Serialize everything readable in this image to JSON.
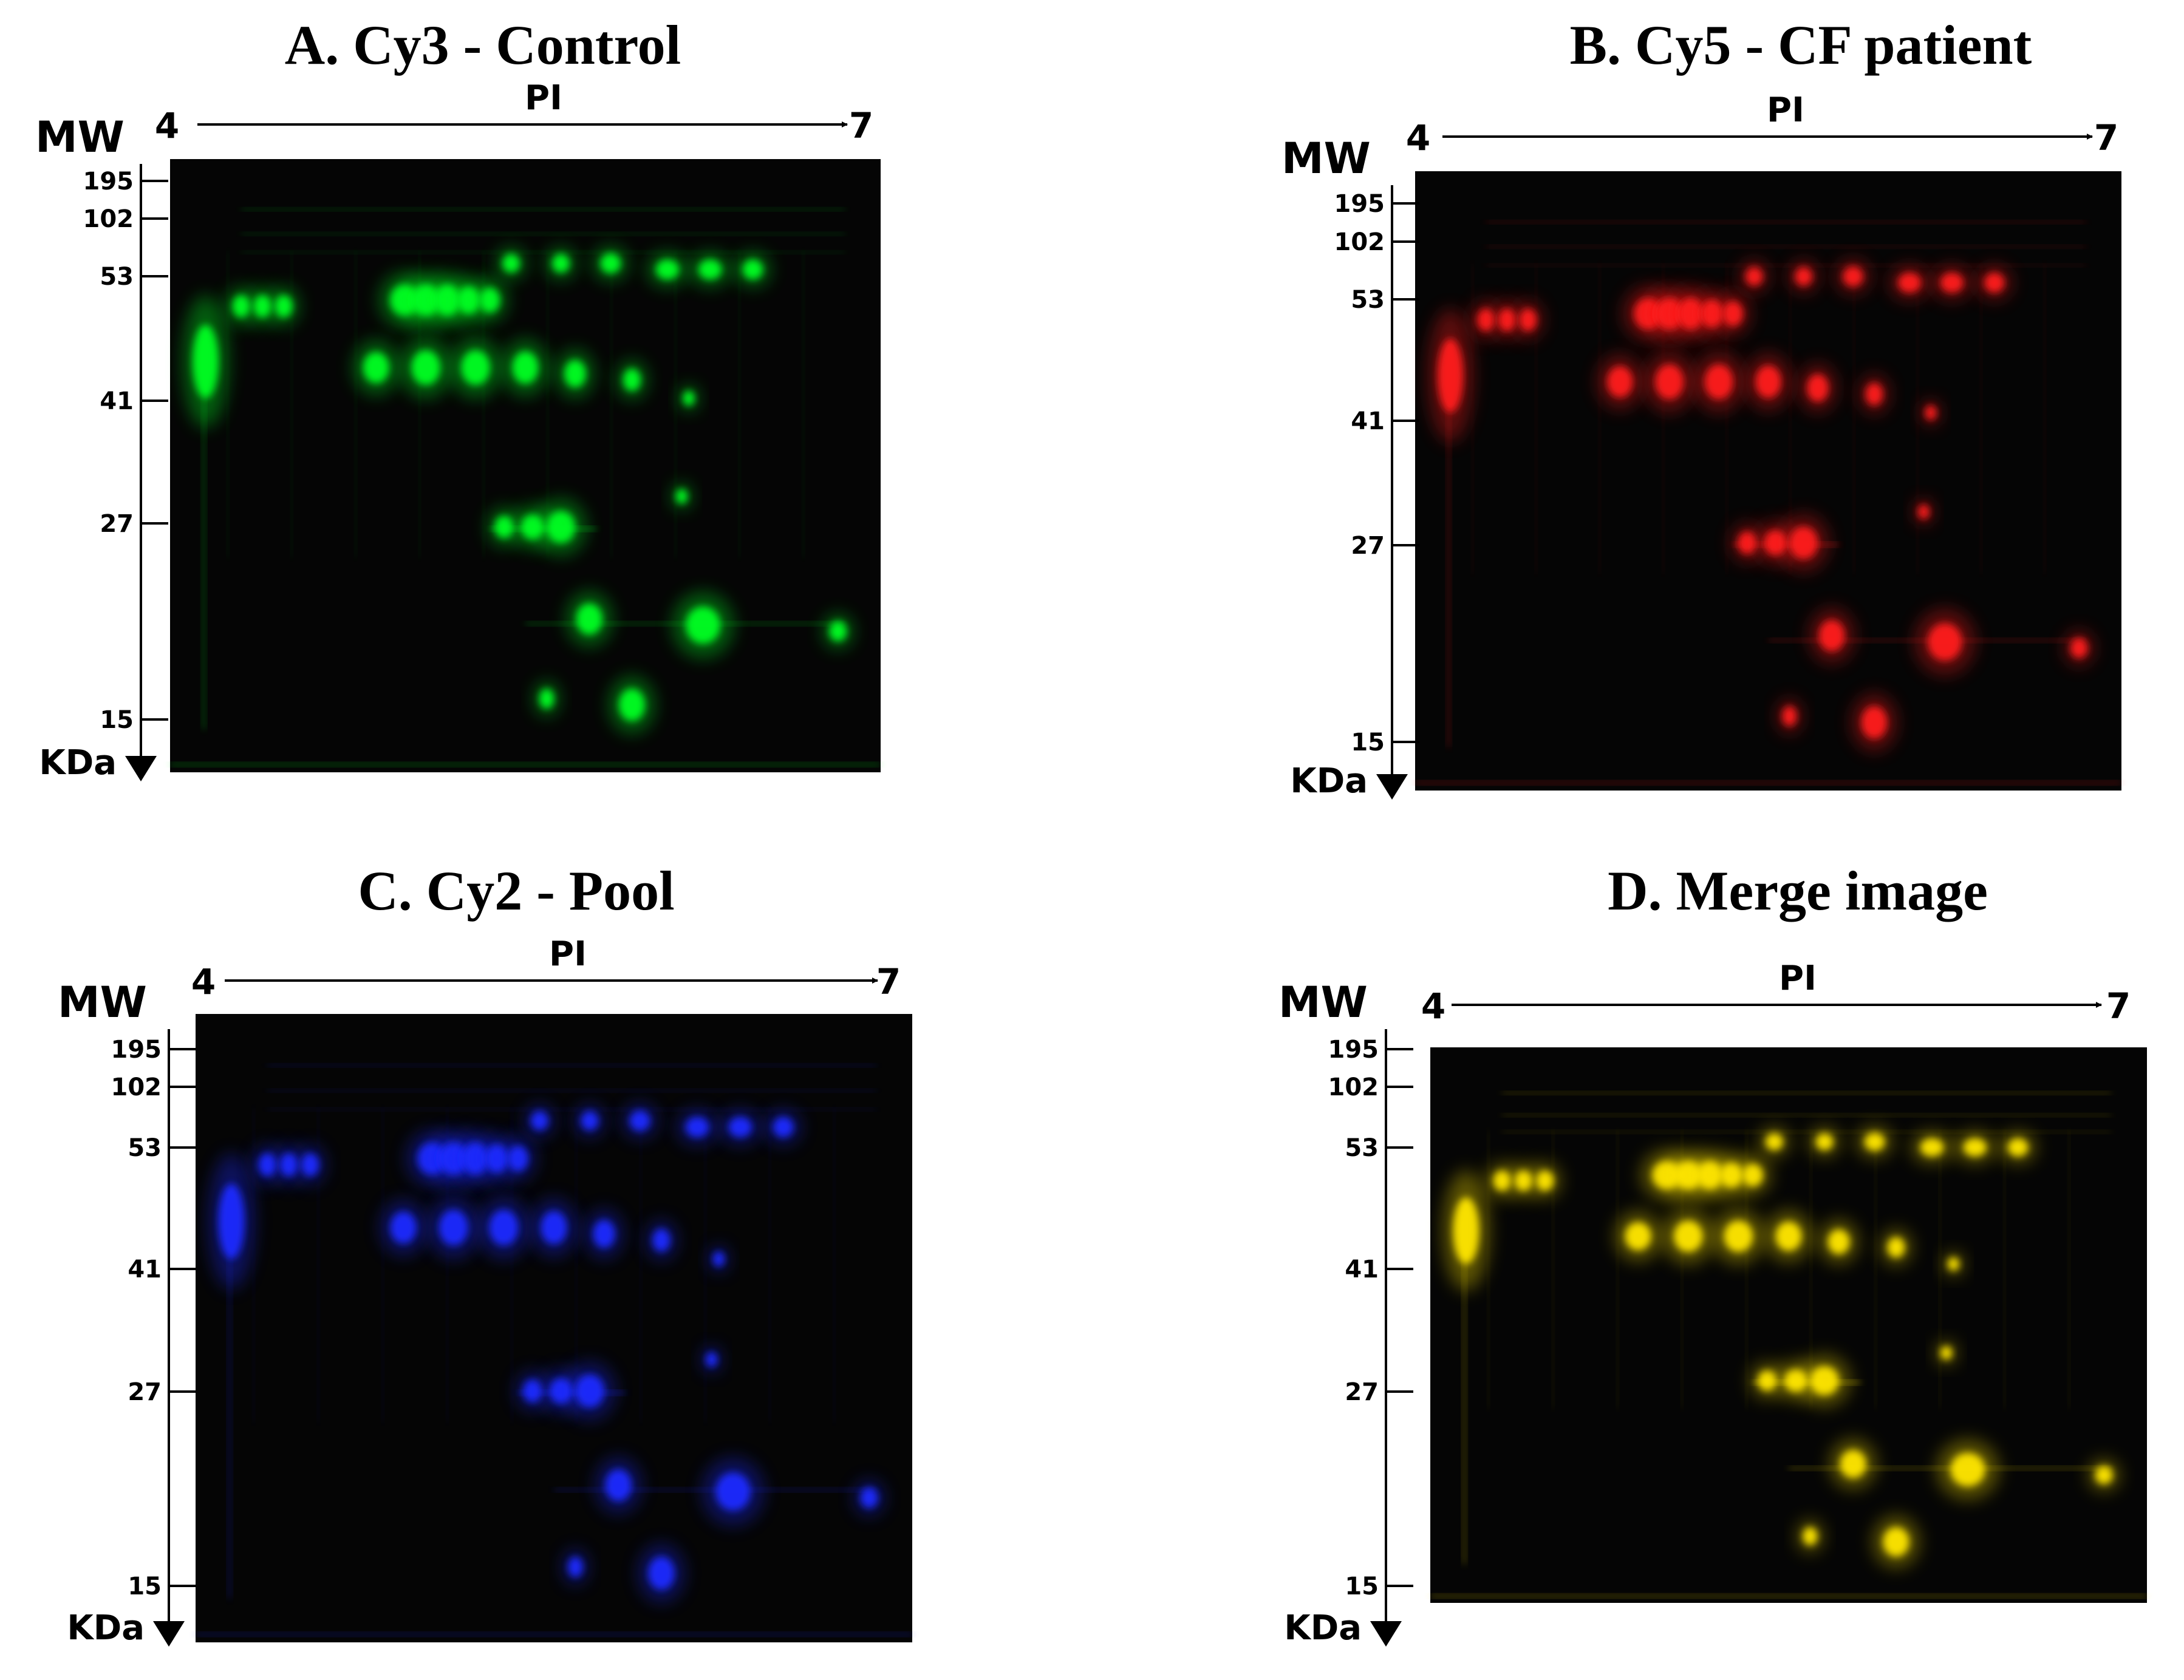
{
  "figure": {
    "x_axis_label": "PI",
    "y_axis_label": "MW",
    "y_unit": "KDa",
    "pi_start": "4",
    "pi_end": "7",
    "mw_ticks": [
      "195",
      "102",
      "53",
      "41",
      "27",
      "15"
    ],
    "panels": [
      {
        "title": "A. Cy3 - Control",
        "dye": "Cy3",
        "sample": "Control",
        "color": "#00ff22"
      },
      {
        "title": "B. Cy5 - CF patient",
        "dye": "Cy5",
        "sample": "CF patient",
        "color": "#ff1a1a"
      },
      {
        "title": "C. Cy2 - Pool",
        "dye": "Cy2",
        "sample": "Pool",
        "color": "#1a2bff"
      },
      {
        "title": "D.  Merge image",
        "dye": "Merge",
        "sample": "Merge",
        "color": "#ffe600"
      }
    ]
  }
}
